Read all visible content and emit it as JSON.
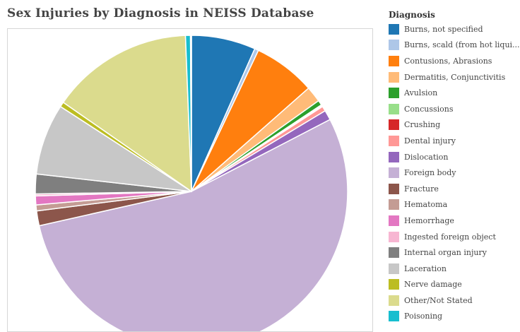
{
  "chart_data": {
    "type": "pie",
    "title": "Sex Injuries by Diagnosis in NEISS Database",
    "legend_title": "Diagnosis",
    "legend_position": "right",
    "slices": [
      {
        "label": "Burns, not specified",
        "value": 6.5,
        "color": "#1f77b4"
      },
      {
        "label": "Burns, scald (from hot liqui...",
        "value": 0.4,
        "color": "#aec7e8"
      },
      {
        "label": "Contusions, Abrasions",
        "value": 6.3,
        "color": "#ff7f0e"
      },
      {
        "label": "Dermatitis, Conjunctivitis",
        "value": 1.6,
        "color": "#ffbb78"
      },
      {
        "label": "Avulsion",
        "value": 0.5,
        "color": "#2ca02c"
      },
      {
        "label": "Concussions",
        "value": 0.1,
        "color": "#98df8a"
      },
      {
        "label": "Crushing",
        "value": 0.1,
        "color": "#d62728"
      },
      {
        "label": "Dental injury",
        "value": 0.5,
        "color": "#ff9896"
      },
      {
        "label": "Dislocation",
        "value": 1.0,
        "color": "#9467bd"
      },
      {
        "label": "Foreign body",
        "value": 52.9,
        "color": "#c5b0d5"
      },
      {
        "label": "Fracture",
        "value": 1.5,
        "color": "#8c564b"
      },
      {
        "label": "Hematoma",
        "value": 0.6,
        "color": "#c49c94"
      },
      {
        "label": "Hemorrhage",
        "value": 0.9,
        "color": "#e377c2"
      },
      {
        "label": "Ingested foreign object",
        "value": 0.2,
        "color": "#f7b6d2"
      },
      {
        "label": "Internal organ injury",
        "value": 2.0,
        "color": "#7f7f7f"
      },
      {
        "label": "Laceration",
        "value": 7.2,
        "color": "#c7c7c7"
      },
      {
        "label": "Nerve damage",
        "value": 0.5,
        "color": "#bcbd22"
      },
      {
        "label": "Other/Not Stated",
        "value": 14.4,
        "color": "#dbdb8d"
      },
      {
        "label": "Poisoning",
        "value": 0.5,
        "color": "#17becf"
      },
      {
        "label": "",
        "value": 0.1,
        "color": "#9edae5"
      }
    ]
  }
}
